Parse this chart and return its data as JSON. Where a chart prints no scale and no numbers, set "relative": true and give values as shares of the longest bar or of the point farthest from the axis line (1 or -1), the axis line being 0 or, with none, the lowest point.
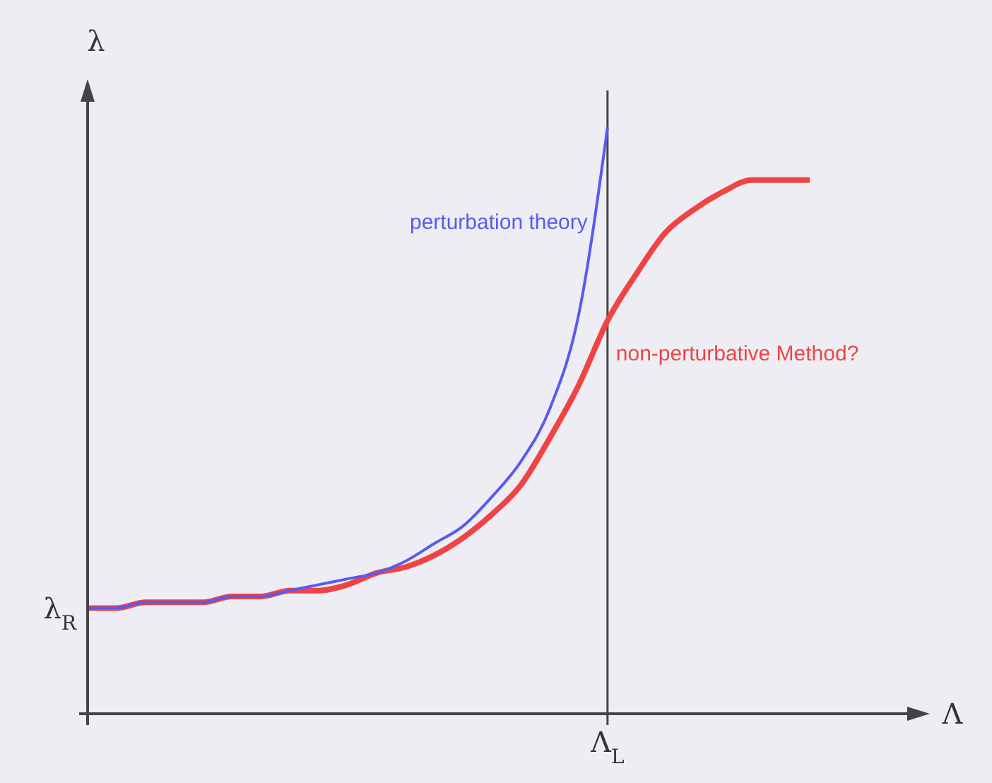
{
  "chart_data": {
    "type": "line",
    "relative": true,
    "xlabel": "Λ",
    "ylabel": "λ",
    "categories": [
      null,
      null,
      null,
      null,
      null,
      null,
      null,
      null,
      null,
      null,
      null,
      null,
      null,
      null,
      null,
      null,
      null,
      null,
      null,
      null,
      null,
      null,
      null,
      null,
      null,
      null
    ],
    "series": [
      {
        "name": "perturbation theory",
        "color": "#5a5af0",
        "values": [
          0.18,
          0.18,
          0.19,
          0.19,
          0.19,
          0.2,
          0.2,
          0.21,
          0.22,
          0.23,
          0.24,
          0.26,
          0.29,
          0.32,
          0.37,
          0.43,
          0.52,
          0.68,
          1,
          null,
          null,
          null,
          null,
          null,
          null,
          null
        ]
      },
      {
        "name": "non-perturbative Method?",
        "color": "#f04444",
        "values": [
          0.18,
          0.18,
          0.19,
          0.19,
          0.19,
          0.2,
          0.2,
          0.21,
          0.21,
          0.22,
          0.24,
          0.25,
          0.27,
          0.3,
          0.34,
          0.39,
          0.47,
          0.56,
          0.67,
          0.75,
          0.82,
          0.86,
          0.89,
          0.91,
          0.91,
          0.91
        ]
      }
    ],
    "annotations": [
      "λ$_{R}$",
      "Λ$_{L}$"
    ]
  }
}
